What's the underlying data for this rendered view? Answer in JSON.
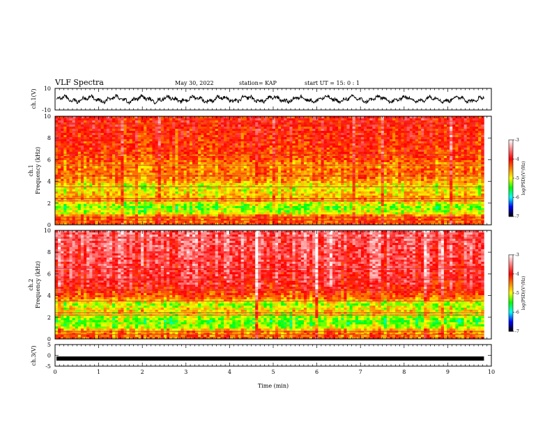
{
  "header": {
    "title": "VLF Spectra",
    "date": "May 30, 2022",
    "station": "station= KAP",
    "start": "start  UT =   15: 0  : 1"
  },
  "chart_data": [
    {
      "type": "line",
      "panel": "ch1-waveform",
      "ylabel": "ch.1(V)",
      "ylim": [
        -10,
        10
      ],
      "y_ticks": [
        "10",
        "-10"
      ],
      "xlim": [
        0,
        10
      ],
      "x_end": 9.83,
      "baseline": 0,
      "amplitude": 3.5
    },
    {
      "type": "heatmap",
      "panel": "ch1-spectrogram",
      "ylabel": "ch.1",
      "ylabel2": "Frequency  (kHz)",
      "ylim": [
        0,
        10
      ],
      "y_ticks": [
        "0",
        "2",
        "4",
        "6",
        "8",
        "10"
      ],
      "xlim": [
        0,
        10
      ],
      "x_end": 9.83,
      "log_psd_profile": [
        {
          "f": 0.0,
          "v": -4.3
        },
        {
          "f": 0.8,
          "v": -4.4
        },
        {
          "f": 1.0,
          "v": -5.0
        },
        {
          "f": 1.6,
          "v": -5.3
        },
        {
          "f": 2.1,
          "v": -4.9
        },
        {
          "f": 2.4,
          "v": -4.6
        },
        {
          "f": 3.0,
          "v": -4.9
        },
        {
          "f": 3.6,
          "v": -5.0
        },
        {
          "f": 4.0,
          "v": -4.6
        },
        {
          "f": 5.0,
          "v": -4.4
        },
        {
          "f": 5.5,
          "v": -4.6
        },
        {
          "f": 6.0,
          "v": -4.3
        },
        {
          "f": 7.0,
          "v": -4.2
        },
        {
          "f": 8.0,
          "v": -4.1
        },
        {
          "f": 10.0,
          "v": -4.0
        }
      ],
      "colorbar": {
        "min": -7,
        "max": -3,
        "ticks": [
          "-3",
          "-4",
          "-5",
          "-6",
          "-7"
        ],
        "label": "log(PSD)(V²/Hz)"
      }
    },
    {
      "type": "heatmap",
      "panel": "ch2-spectrogram",
      "ylabel": "ch.2",
      "ylabel2": "Frequency  (kHz)",
      "ylim": [
        0,
        10
      ],
      "y_ticks": [
        "0",
        "2",
        "4",
        "6",
        "8",
        "10"
      ],
      "xlim": [
        0,
        10
      ],
      "x_end": 9.83,
      "log_psd_profile": [
        {
          "f": 0.0,
          "v": -4.3
        },
        {
          "f": 0.8,
          "v": -4.6
        },
        {
          "f": 1.0,
          "v": -5.1
        },
        {
          "f": 1.6,
          "v": -5.4
        },
        {
          "f": 2.1,
          "v": -5.1
        },
        {
          "f": 2.6,
          "v": -4.8
        },
        {
          "f": 3.2,
          "v": -5.2
        },
        {
          "f": 3.8,
          "v": -4.4
        },
        {
          "f": 5.0,
          "v": -3.9
        },
        {
          "f": 6.0,
          "v": -3.8
        },
        {
          "f": 8.0,
          "v": -3.7
        },
        {
          "f": 10.0,
          "v": -3.6
        }
      ],
      "colorbar": {
        "min": -7,
        "max": -3,
        "ticks": [
          "-3",
          "-4",
          "-5",
          "-6",
          "-7"
        ],
        "label": "log(PSD)(V²/Hz)"
      }
    },
    {
      "type": "line",
      "panel": "ch3-waveform",
      "ylabel": "ch.3(V)",
      "ylim": [
        -5,
        5
      ],
      "y_ticks": [
        "5",
        "0",
        "-5"
      ],
      "xlim": [
        0,
        10
      ],
      "x_end": 9.83,
      "level": -1.5,
      "xlabel": "Time  (min)",
      "x_ticks": [
        "0",
        "1",
        "2",
        "3",
        "4",
        "5",
        "6",
        "7",
        "8",
        "9",
        "10"
      ]
    }
  ],
  "colors": {
    "frame": "#000000",
    "colormap": [
      "#ffffff",
      "#ff0000",
      "#ffff00",
      "#00ff00",
      "#00ffff",
      "#0000ff",
      "#000000"
    ]
  }
}
